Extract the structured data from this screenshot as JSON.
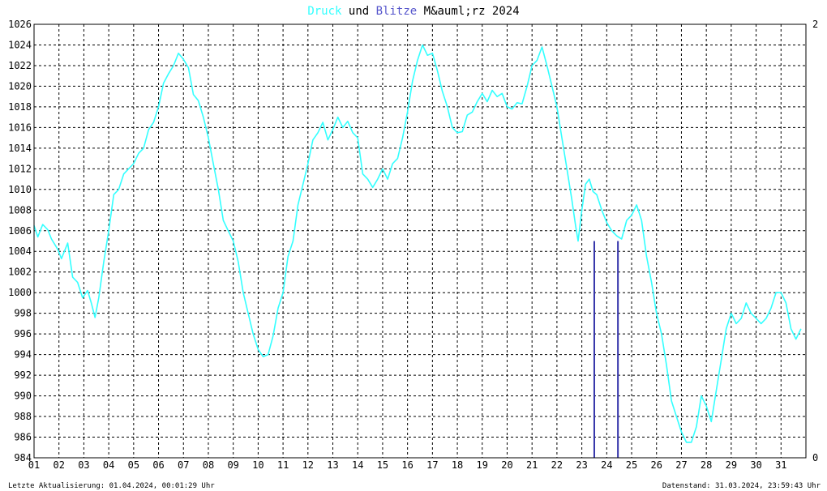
{
  "chart_data": {
    "type": "line",
    "title": {
      "part1": "Druck",
      "part2": " und ",
      "part3": "Blitze",
      "part4": " M&auml;rz 2024"
    },
    "colors": {
      "pressure": "#33ffff",
      "lightning": "#3333aa",
      "grid": "#000000"
    },
    "x_ticks": [
      "01",
      "02",
      "03",
      "04",
      "05",
      "06",
      "07",
      "08",
      "09",
      "10",
      "11",
      "12",
      "13",
      "14",
      "15",
      "16",
      "17",
      "18",
      "19",
      "20",
      "21",
      "22",
      "23",
      "24",
      "25",
      "26",
      "27",
      "28",
      "29",
      "30",
      "31"
    ],
    "ylim": [
      984,
      1026
    ],
    "y_ticks": [
      984,
      986,
      988,
      990,
      992,
      994,
      996,
      998,
      1000,
      1002,
      1004,
      1006,
      1008,
      1010,
      1012,
      1014,
      1016,
      1018,
      1020,
      1022,
      1024,
      1026
    ],
    "y2lim": [
      0,
      2
    ],
    "y2_ticks": [
      0,
      2
    ],
    "pressure_series": [
      [
        1.0,
        1006.5
      ],
      [
        1.15,
        1005.4
      ],
      [
        1.35,
        1006.6
      ],
      [
        1.55,
        1006.1
      ],
      [
        1.7,
        1005.2
      ],
      [
        1.95,
        1004.2
      ],
      [
        2.1,
        1003.3
      ],
      [
        2.35,
        1004.8
      ],
      [
        2.55,
        1001.5
      ],
      [
        2.75,
        1001.0
      ],
      [
        2.95,
        999.5
      ],
      [
        3.15,
        1000.2
      ],
      [
        3.3,
        999.0
      ],
      [
        3.45,
        997.6
      ],
      [
        3.6,
        999.5
      ],
      [
        3.8,
        1003.0
      ],
      [
        4.0,
        1006.0
      ],
      [
        4.2,
        1009.5
      ],
      [
        4.4,
        1010.0
      ],
      [
        4.6,
        1011.5
      ],
      [
        4.8,
        1012.0
      ],
      [
        5.0,
        1012.5
      ],
      [
        5.2,
        1013.5
      ],
      [
        5.4,
        1014.0
      ],
      [
        5.6,
        1015.8
      ],
      [
        5.8,
        1016.5
      ],
      [
        6.0,
        1018.0
      ],
      [
        6.2,
        1020.3
      ],
      [
        6.4,
        1021.2
      ],
      [
        6.6,
        1022.0
      ],
      [
        6.8,
        1023.2
      ],
      [
        7.0,
        1022.6
      ],
      [
        7.2,
        1021.8
      ],
      [
        7.4,
        1019.2
      ],
      [
        7.6,
        1018.6
      ],
      [
        7.8,
        1017.0
      ],
      [
        8.0,
        1015.0
      ],
      [
        8.2,
        1012.5
      ],
      [
        8.4,
        1010.0
      ],
      [
        8.6,
        1007.0
      ],
      [
        8.8,
        1006.0
      ],
      [
        9.0,
        1005.0
      ],
      [
        9.2,
        1003.0
      ],
      [
        9.4,
        1000.0
      ],
      [
        9.6,
        998.0
      ],
      [
        9.8,
        996.0
      ],
      [
        10.0,
        994.5
      ],
      [
        10.2,
        993.8
      ],
      [
        10.4,
        994.0
      ],
      [
        10.6,
        995.8
      ],
      [
        10.8,
        998.5
      ],
      [
        11.0,
        1000.0
      ],
      [
        11.2,
        1003.5
      ],
      [
        11.4,
        1005.0
      ],
      [
        11.6,
        1008.5
      ],
      [
        11.8,
        1010.5
      ],
      [
        12.0,
        1012.5
      ],
      [
        12.2,
        1014.8
      ],
      [
        12.4,
        1015.5
      ],
      [
        12.6,
        1016.5
      ],
      [
        12.8,
        1014.8
      ],
      [
        13.0,
        1015.8
      ],
      [
        13.2,
        1017.0
      ],
      [
        13.4,
        1016.0
      ],
      [
        13.6,
        1016.6
      ],
      [
        13.8,
        1015.5
      ],
      [
        14.0,
        1015.0
      ],
      [
        14.2,
        1011.5
      ],
      [
        14.4,
        1011.0
      ],
      [
        14.6,
        1010.2
      ],
      [
        14.8,
        1011.0
      ],
      [
        15.0,
        1012.0
      ],
      [
        15.2,
        1011.0
      ],
      [
        15.4,
        1012.5
      ],
      [
        15.6,
        1013.0
      ],
      [
        15.8,
        1015.0
      ],
      [
        16.0,
        1017.5
      ],
      [
        16.2,
        1020.5
      ],
      [
        16.4,
        1022.5
      ],
      [
        16.6,
        1024.0
      ],
      [
        16.8,
        1023.0
      ],
      [
        17.0,
        1023.2
      ],
      [
        17.2,
        1021.5
      ],
      [
        17.4,
        1019.5
      ],
      [
        17.6,
        1018.0
      ],
      [
        17.8,
        1016.0
      ],
      [
        18.0,
        1015.5
      ],
      [
        18.2,
        1015.6
      ],
      [
        18.4,
        1017.2
      ],
      [
        18.6,
        1017.5
      ],
      [
        18.8,
        1018.5
      ],
      [
        19.0,
        1019.3
      ],
      [
        19.2,
        1018.5
      ],
      [
        19.4,
        1019.6
      ],
      [
        19.6,
        1019.0
      ],
      [
        19.8,
        1019.3
      ],
      [
        20.0,
        1018.0
      ],
      [
        20.2,
        1017.8
      ],
      [
        20.4,
        1018.4
      ],
      [
        20.6,
        1018.3
      ],
      [
        20.8,
        1020.0
      ],
      [
        21.0,
        1022.0
      ],
      [
        21.2,
        1022.5
      ],
      [
        21.4,
        1023.8
      ],
      [
        21.6,
        1022.0
      ],
      [
        21.8,
        1020.0
      ],
      [
        22.0,
        1018.0
      ],
      [
        22.2,
        1015.0
      ],
      [
        22.4,
        1012.0
      ],
      [
        22.6,
        1009.0
      ],
      [
        22.75,
        1006.5
      ],
      [
        22.85,
        1005.0
      ],
      [
        23.0,
        1008.0
      ],
      [
        23.15,
        1010.5
      ],
      [
        23.3,
        1011.0
      ],
      [
        23.45,
        1009.8
      ],
      [
        23.6,
        1009.5
      ],
      [
        23.8,
        1008.0
      ],
      [
        24.0,
        1006.8
      ],
      [
        24.2,
        1006.0
      ],
      [
        24.4,
        1005.5
      ],
      [
        24.6,
        1005.2
      ],
      [
        24.8,
        1007.0
      ],
      [
        25.0,
        1007.5
      ],
      [
        25.2,
        1008.5
      ],
      [
        25.4,
        1007.0
      ],
      [
        25.6,
        1003.5
      ],
      [
        25.8,
        1001.0
      ],
      [
        26.0,
        998.0
      ],
      [
        26.2,
        996.0
      ],
      [
        26.4,
        993.0
      ],
      [
        26.6,
        989.5
      ],
      [
        26.8,
        988.0
      ],
      [
        27.0,
        986.5
      ],
      [
        27.2,
        985.5
      ],
      [
        27.4,
        985.5
      ],
      [
        27.6,
        987.0
      ],
      [
        27.8,
        990.0
      ],
      [
        28.0,
        989.0
      ],
      [
        28.2,
        987.5
      ],
      [
        28.4,
        990.5
      ],
      [
        28.6,
        993.5
      ],
      [
        28.8,
        996.5
      ],
      [
        29.0,
        998.0
      ],
      [
        29.2,
        997.0
      ],
      [
        29.4,
        997.5
      ],
      [
        29.6,
        999.0
      ],
      [
        29.8,
        998.0
      ],
      [
        30.0,
        997.5
      ],
      [
        30.2,
        997.0
      ],
      [
        30.4,
        997.5
      ],
      [
        30.6,
        998.5
      ],
      [
        30.8,
        1000.0
      ],
      [
        31.0,
        1000.0
      ],
      [
        31.2,
        999.0
      ],
      [
        31.4,
        996.5
      ],
      [
        31.6,
        995.5
      ],
      [
        31.8,
        996.5
      ]
    ],
    "lightning_series": [
      {
        "x": 23.5,
        "value": 1.0
      },
      {
        "x": 24.45,
        "value": 1.0
      }
    ]
  },
  "footer": {
    "left": "Letzte Aktualisierung: 01.04.2024, 00:01:29 Uhr",
    "right": "Datenstand: 31.03.2024, 23:59:43 Uhr"
  }
}
